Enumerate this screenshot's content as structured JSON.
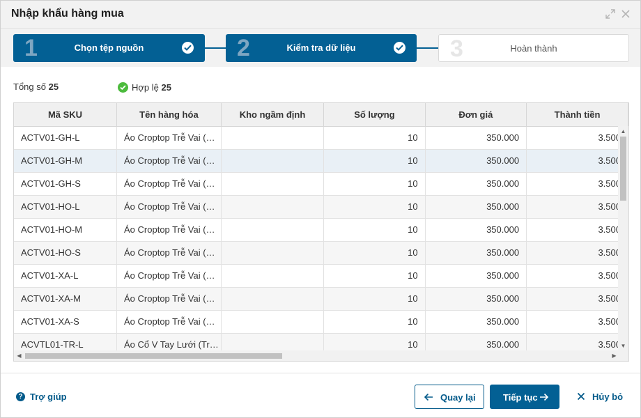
{
  "dialog": {
    "title": "Nhập khẩu hàng mua"
  },
  "steps": [
    {
      "number": "1",
      "label": "Chọn tệp nguồn",
      "status": "done"
    },
    {
      "number": "2",
      "label": "Kiểm tra dữ liệu",
      "status": "done"
    },
    {
      "number": "3",
      "label": "Hoàn thành",
      "status": "pending"
    }
  ],
  "summary": {
    "total_label": "Tổng số",
    "total_value": "25",
    "valid_label": "Hợp lệ",
    "valid_value": "25"
  },
  "table": {
    "columns": [
      "Mã SKU",
      "Tên hàng hóa",
      "Kho ngầm định",
      "Số lượng",
      "Đơn giá",
      "Thành tiền"
    ],
    "rows": [
      [
        "ACTV01-GH-L",
        "Áo Croptop Trễ Vai (…",
        "",
        "10",
        "350.000",
        "3.500"
      ],
      [
        "ACTV01-GH-M",
        "Áo Croptop Trễ Vai (…",
        "",
        "10",
        "350.000",
        "3.500"
      ],
      [
        "ACTV01-GH-S",
        "Áo Croptop Trễ Vai (…",
        "",
        "10",
        "350.000",
        "3.500"
      ],
      [
        "ACTV01-HO-L",
        "Áo Croptop Trễ Vai (…",
        "",
        "10",
        "350.000",
        "3.500"
      ],
      [
        "ACTV01-HO-M",
        "Áo Croptop Trễ Vai (…",
        "",
        "10",
        "350.000",
        "3.500"
      ],
      [
        "ACTV01-HO-S",
        "Áo Croptop Trễ Vai (…",
        "",
        "10",
        "350.000",
        "3.500"
      ],
      [
        "ACTV01-XA-L",
        "Áo Croptop Trễ Vai (…",
        "",
        "10",
        "350.000",
        "3.500"
      ],
      [
        "ACTV01-XA-M",
        "Áo Croptop Trễ Vai (…",
        "",
        "10",
        "350.000",
        "3.500"
      ],
      [
        "ACTV01-XA-S",
        "Áo Croptop Trễ Vai (…",
        "",
        "10",
        "350.000",
        "3.500"
      ],
      [
        "ACVTL01-TR-L",
        "Áo Cổ V Tay Lưới (Tr…",
        "",
        "10",
        "350.000",
        "3.500"
      ]
    ],
    "selected_row": 1
  },
  "footer": {
    "help_label": "Trợ giúp",
    "back_label": "Quay lại",
    "next_label": "Tiếp tục",
    "cancel_label": "Hủy bỏ"
  },
  "colors": {
    "primary": "#036094",
    "valid": "#4cbb3d",
    "header_bg": "#f2f2f2"
  }
}
